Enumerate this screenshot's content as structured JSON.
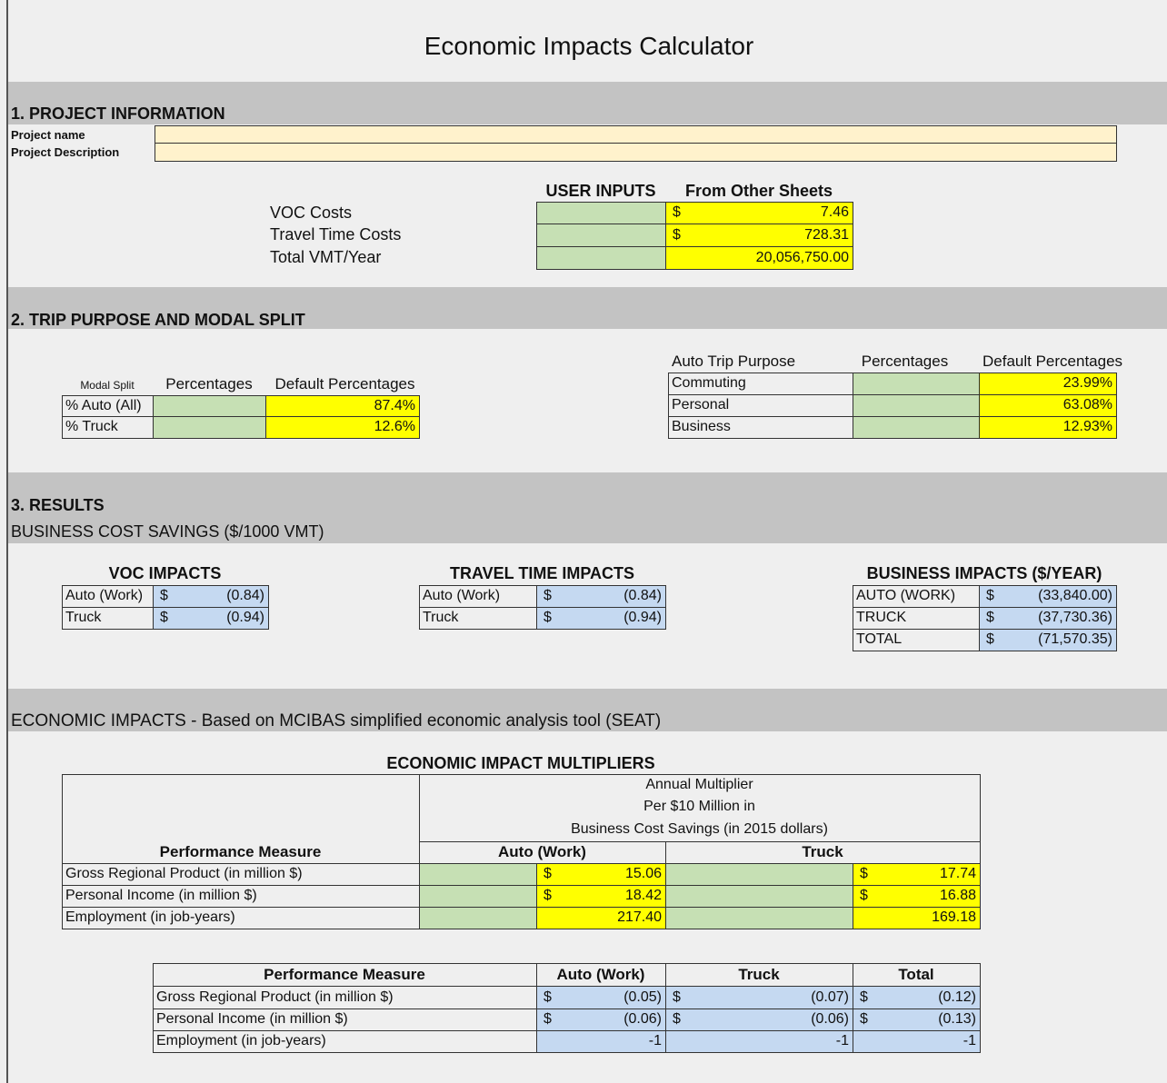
{
  "title": "Economic Impacts Calculator",
  "section1": {
    "heading": "1. PROJECT INFORMATION",
    "fields": [
      "Project name",
      "Project Description"
    ],
    "inputs": {
      "headers": [
        "USER INPUTS",
        "From Other Sheets"
      ],
      "rows": [
        {
          "label": "VOC Costs",
          "cur": "$",
          "value": "7.46"
        },
        {
          "label": "Travel Time Costs",
          "cur": "$",
          "value": "728.31"
        },
        {
          "label": "Total VMT/Year",
          "value": "20,056,750.00"
        }
      ]
    }
  },
  "section2": {
    "heading": "2. TRIP PURPOSE AND MODAL SPLIT",
    "modal": {
      "headers": [
        "Modal Split",
        "Percentages",
        "Default Percentages"
      ],
      "rows": [
        {
          "label": "% Auto (All)",
          "value": "87.4%"
        },
        {
          "label": "% Truck",
          "value": "12.6%"
        }
      ]
    },
    "trip": {
      "headers": [
        "Auto Trip Purpose",
        "Percentages",
        "Default Percentages"
      ],
      "rows": [
        {
          "label": "Commuting",
          "value": "23.99%"
        },
        {
          "label": "Personal",
          "value": "63.08%"
        },
        {
          "label": "Business",
          "value": "12.93%"
        }
      ]
    }
  },
  "section3": {
    "heading": "3. RESULTS",
    "subheading": "BUSINESS COST SAVINGS ($/1000 VMT)",
    "voc": {
      "title": "VOC IMPACTS",
      "rows": [
        {
          "label": "Auto (Work)",
          "cur": "$",
          "value": "(0.84)"
        },
        {
          "label": "Truck",
          "cur": "$",
          "value": "(0.94)"
        }
      ]
    },
    "travel": {
      "title": "TRAVEL TIME IMPACTS",
      "rows": [
        {
          "label": "Auto (Work)",
          "cur": "$",
          "value": "(0.84)"
        },
        {
          "label": "Truck",
          "cur": "$",
          "value": "(0.94)"
        }
      ]
    },
    "business": {
      "title": "BUSINESS IMPACTS ($/YEAR)",
      "rows": [
        {
          "label": "AUTO (WORK)",
          "cur": "$",
          "value": "(33,840.00)"
        },
        {
          "label": "TRUCK",
          "cur": "$",
          "value": "(37,730.36)"
        },
        {
          "label": "TOTAL",
          "cur": "$",
          "value": "(71,570.35)"
        }
      ]
    }
  },
  "economic": {
    "heading": "ECONOMIC IMPACTS - Based on MCIBAS simplified economic analysis tool (SEAT)",
    "multipliers": {
      "title": "ECONOMIC IMPACT MULTIPLIERS",
      "measure": "Performance Measure",
      "annual": [
        "Annual Multiplier",
        "Per $10 Million in",
        "Business Cost Savings (in 2015 dollars)"
      ],
      "columns": [
        "Auto (Work)",
        "Truck"
      ],
      "rows": [
        {
          "label": "Gross Regional Product (in million $)",
          "auto": {
            "cur": "$",
            "value": "15.06"
          },
          "truck": {
            "cur": "$",
            "value": "17.74"
          }
        },
        {
          "label": "Personal Income (in million $)",
          "auto": {
            "cur": "$",
            "value": "18.42"
          },
          "truck": {
            "cur": "$",
            "value": "16.88"
          }
        },
        {
          "label": "Employment (in job-years)",
          "auto": {
            "value": "217.40"
          },
          "truck": {
            "value": "169.18"
          }
        }
      ]
    },
    "results": {
      "headers": [
        "Performance Measure",
        "Auto (Work)",
        "Truck",
        "Total"
      ],
      "rows": [
        {
          "label": "Gross Regional Product (in million $)",
          "values": [
            {
              "cur": "$",
              "value": "(0.05)"
            },
            {
              "cur": "$",
              "value": "(0.07)"
            },
            {
              "cur": "$",
              "value": "(0.12)"
            }
          ]
        },
        {
          "label": "Personal Income (in million $)",
          "values": [
            {
              "cur": "$",
              "value": "(0.06)"
            },
            {
              "cur": "$",
              "value": "(0.06)"
            },
            {
              "cur": "$",
              "value": "(0.13)"
            }
          ]
        },
        {
          "label": "Employment (in job-years)",
          "values": [
            {
              "value": "-1"
            },
            {
              "value": "-1"
            },
            {
              "value": "-1"
            }
          ]
        }
      ]
    }
  }
}
